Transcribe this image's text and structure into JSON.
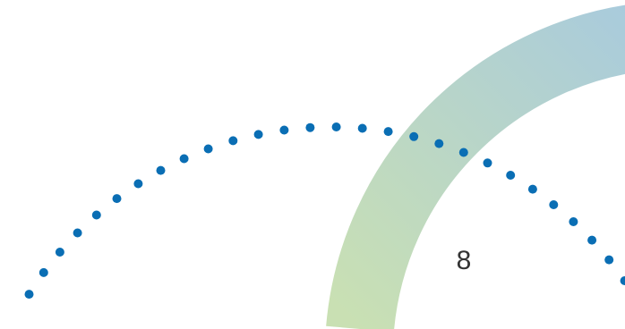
{
  "page": {
    "number": "8"
  },
  "colors": {
    "dot": "#0a6eb4",
    "arc_gradient_start": "#c9e0b3",
    "arc_gradient_end": "#a9cbdc",
    "page_number": "#333333",
    "background": "#ffffff"
  },
  "decor": {
    "arc": "gradient-ring-arc",
    "dots": "dotted-arc"
  }
}
